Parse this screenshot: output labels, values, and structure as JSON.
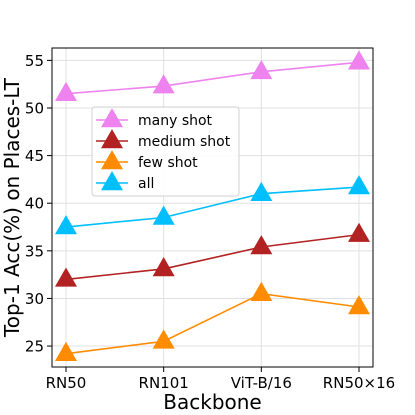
{
  "chart_data": {
    "type": "line",
    "title": "",
    "xlabel": "Backbone",
    "ylabel": "Top-1 Acc(%) on Places-LT",
    "categories": [
      "RN50",
      "RN101",
      "ViT-B/16",
      "RN50×16"
    ],
    "ylim": [
      22.8,
      56.3
    ],
    "yticks": [
      25,
      30,
      35,
      40,
      45,
      50,
      55
    ],
    "grid": true,
    "legend_position": "center-left",
    "marker": "triangle",
    "series": [
      {
        "name": "many shot",
        "color": "#ee82ee",
        "values": [
          51.5,
          52.3,
          53.8,
          54.8
        ]
      },
      {
        "name": "medium shot",
        "color": "#b22222",
        "values": [
          32.0,
          33.1,
          35.4,
          36.7
        ]
      },
      {
        "name": "few shot",
        "color": "#ff8c00",
        "values": [
          24.2,
          25.5,
          30.5,
          29.1
        ]
      },
      {
        "name": "all",
        "color": "#00bfff",
        "values": [
          37.5,
          38.5,
          41.0,
          41.7
        ]
      }
    ]
  }
}
